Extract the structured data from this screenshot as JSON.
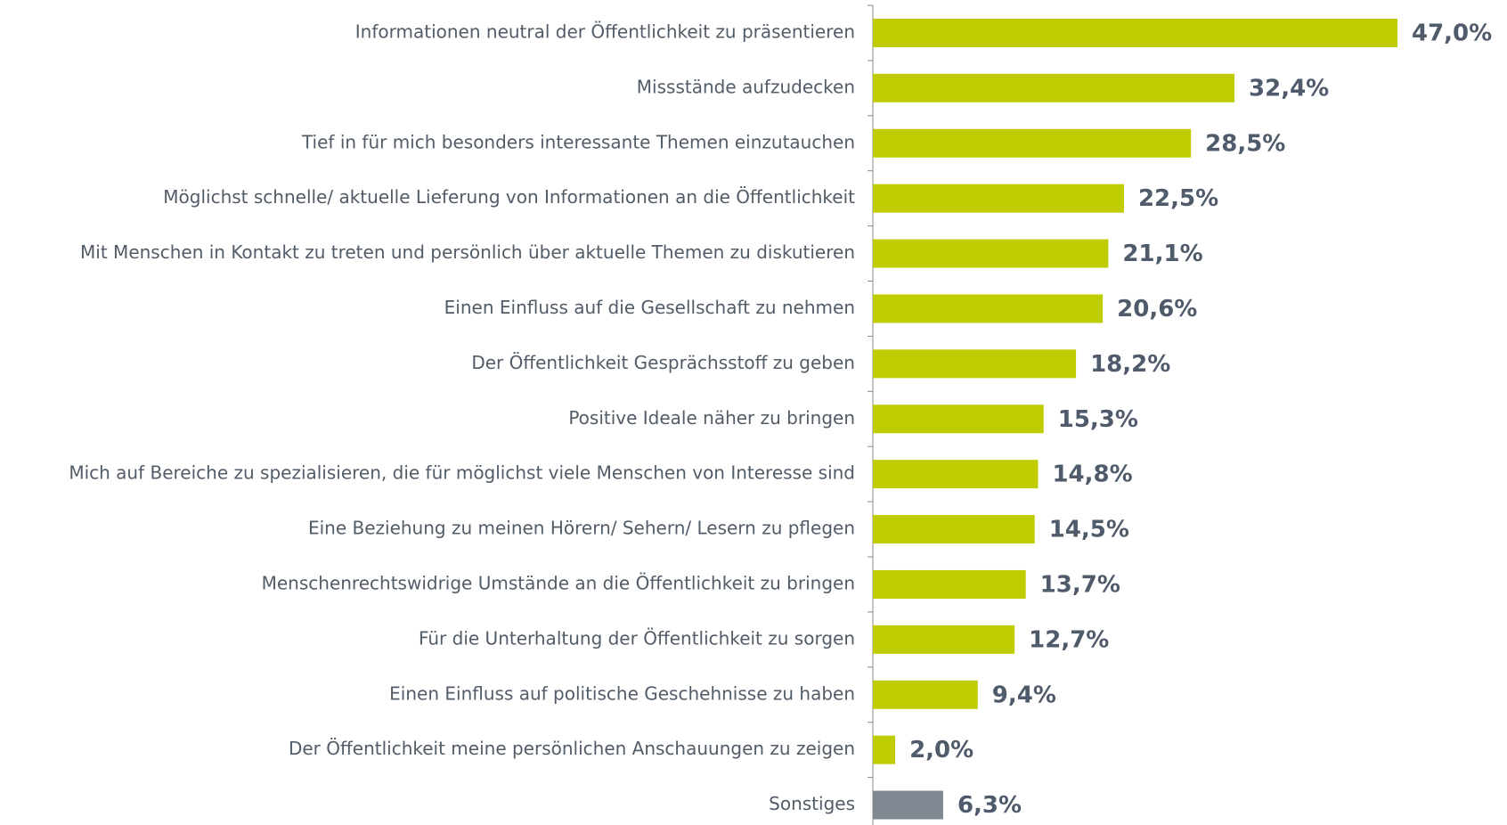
{
  "chart_data": {
    "type": "bar",
    "orientation": "horizontal",
    "categories": [
      "Informationen neutral der Öffentlichkeit zu präsentieren",
      "Missstände aufzudecken",
      "Tief in für mich besonders interessante Themen einzutauchen",
      "Möglichst schnelle/ aktuelle Lieferung von Informationen an die Öffentlichkeit",
      "Mit Menschen in Kontakt zu treten und persönlich über aktuelle Themen zu diskutieren",
      "Einen Einfluss auf die Gesellschaft zu nehmen",
      "Der Öffentlichkeit Gesprächsstoff zu geben",
      "Positive Ideale näher zu bringen",
      "Mich auf Bereiche zu spezialisieren, die für möglichst viele Menschen von Interesse sind",
      "Eine Beziehung zu meinen Hörern/ Sehern/ Lesern zu pflegen",
      "Menschenrechtswidrige Umstände an die Öffentlichkeit zu bringen",
      "Für die Unterhaltung der Öffentlichkeit zu sorgen",
      "Einen Einfluss auf politische Geschehnisse zu haben",
      "Der Öffentlichkeit meine persönlichen Anschauungen zu zeigen",
      "Sonstiges"
    ],
    "values": [
      47.0,
      32.4,
      28.5,
      22.5,
      21.1,
      20.6,
      18.2,
      15.3,
      14.8,
      14.5,
      13.7,
      12.7,
      9.4,
      2.0,
      6.3
    ],
    "value_labels": [
      "47,0%",
      "32,4%",
      "28,5%",
      "22,5%",
      "21,1%",
      "20,6%",
      "18,2%",
      "15,3%",
      "14,8%",
      "14,5%",
      "13,7%",
      "12,7%",
      "9,4%",
      "2,0%",
      "6,3%"
    ],
    "colors": [
      "#bfcd00",
      "#bfcd00",
      "#bfcd00",
      "#bfcd00",
      "#bfcd00",
      "#bfcd00",
      "#bfcd00",
      "#bfcd00",
      "#bfcd00",
      "#bfcd00",
      "#bfcd00",
      "#bfcd00",
      "#bfcd00",
      "#bfcd00",
      "#7f8891"
    ]
  }
}
